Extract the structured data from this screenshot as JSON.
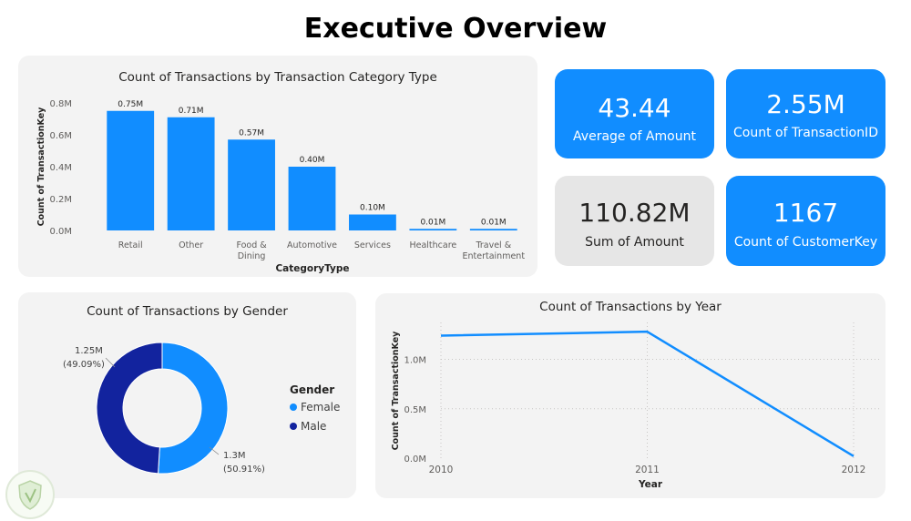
{
  "page_title": "Executive Overview",
  "cards": [
    {
      "value": "43.44",
      "label": "Average of Amount"
    },
    {
      "value": "2.55M",
      "label": "Count of TransactionID"
    },
    {
      "value": "110.82M",
      "label": "Sum of Amount"
    },
    {
      "value": "1167",
      "label": "Count of CustomerKey"
    }
  ],
  "colors": {
    "primary": "#118dff",
    "male": "#12239e",
    "panel": "#f3f3f3",
    "card_grey": "#e6e6e6"
  },
  "chart_data": [
    {
      "type": "bar",
      "title": "Count of Transactions by Transaction Category Type",
      "xlabel": "CategoryType",
      "ylabel": "Count of TransactionKey",
      "categories": [
        [
          "Retail"
        ],
        [
          "Other"
        ],
        [
          "Food &",
          "Dining"
        ],
        [
          "Automotive"
        ],
        [
          "Services"
        ],
        [
          "Healthcare"
        ],
        [
          "Travel &",
          "Entertainment"
        ]
      ],
      "values": [
        0.75,
        0.71,
        0.57,
        0.4,
        0.1,
        0.01,
        0.01
      ],
      "data_labels": [
        "0.75M",
        "0.71M",
        "0.57M",
        "0.40M",
        "0.10M",
        "0.01M",
        "0.01M"
      ],
      "ylim": [
        0,
        0.8
      ],
      "yticks": [
        0,
        0.2,
        0.4,
        0.6,
        0.8
      ],
      "ytick_labels": [
        "0.0M",
        "0.2M",
        "0.4M",
        "0.6M",
        "0.8M"
      ],
      "grid": false
    },
    {
      "type": "pie",
      "title": "Count of Transactions by Gender",
      "legend_title": "Gender",
      "legend_position": "right",
      "slices": [
        {
          "name": "Female",
          "value": 1.3,
          "percent": 50.91,
          "label": "1.3M",
          "pct_label": "(50.91%)",
          "color": "#118dff"
        },
        {
          "name": "Male",
          "value": 1.25,
          "percent": 49.09,
          "label": "1.25M",
          "pct_label": "(49.09%)",
          "color": "#12239e"
        }
      ]
    },
    {
      "type": "line",
      "title": "Count of Transactions by Year",
      "xlabel": "Year",
      "ylabel": "Count of TransactionKey",
      "x": [
        2010,
        2011,
        2012
      ],
      "x_labels": [
        "2010",
        "2011",
        "2012"
      ],
      "values": [
        1.24,
        1.28,
        0.02
      ],
      "ylim": [
        0,
        1.3
      ],
      "yticks": [
        0,
        0.5,
        1.0
      ],
      "ytick_labels": [
        "0.0M",
        "0.5M",
        "1.0M"
      ],
      "grid": true
    }
  ]
}
